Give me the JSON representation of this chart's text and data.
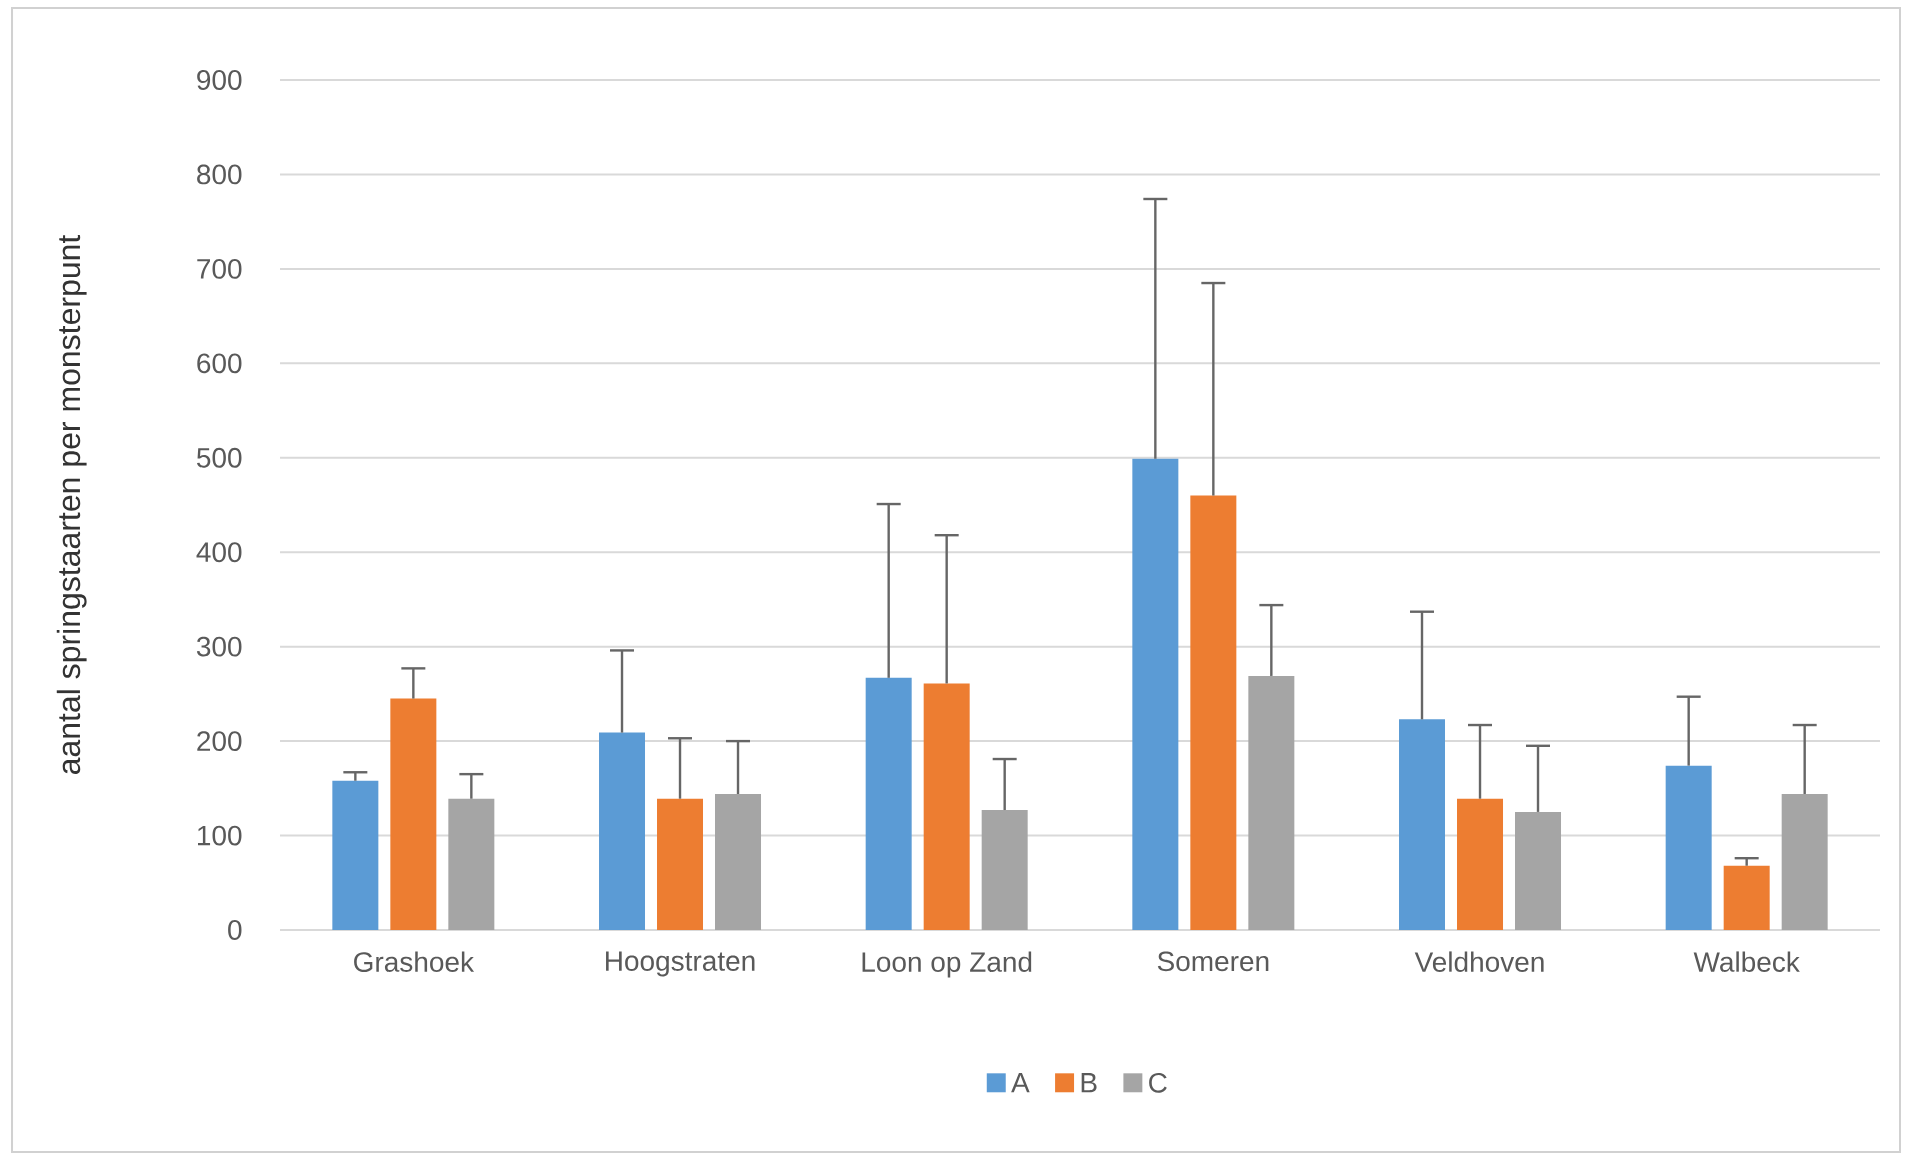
{
  "chart_data": {
    "type": "bar",
    "ylabel": "aantal springstaarten per monsterpunt",
    "categories": [
      "Grashoek",
      "Hoogstraten",
      "Loon op Zand",
      "Someren",
      "Veldhoven",
      "Walbeck"
    ],
    "series": [
      {
        "name": "A",
        "color": "#5b9bd5",
        "values": [
          158,
          209,
          267,
          499,
          223,
          174
        ],
        "errors": [
          [
            158,
            167
          ],
          [
            209,
            296
          ],
          [
            267,
            451
          ],
          [
            499,
            774
          ],
          [
            223,
            337
          ],
          [
            174,
            247
          ]
        ]
      },
      {
        "name": "B",
        "color": "#ed7d31",
        "values": [
          245,
          139,
          261,
          460,
          139,
          68
        ],
        "errors": [
          [
            245,
            277
          ],
          [
            139,
            203
          ],
          [
            261,
            418
          ],
          [
            460,
            685
          ],
          [
            139,
            217
          ],
          [
            68,
            76
          ]
        ]
      },
      {
        "name": "C",
        "color": "#a5a5a5",
        "values": [
          139,
          144,
          127,
          269,
          125,
          144
        ],
        "errors": [
          [
            139,
            165
          ],
          [
            144,
            200
          ],
          [
            127,
            181
          ],
          [
            269,
            344
          ],
          [
            125,
            195
          ],
          [
            144,
            217
          ]
        ]
      }
    ],
    "ylim": [
      0,
      900
    ],
    "yticks": [
      0,
      100,
      200,
      300,
      400,
      500,
      600,
      700,
      800,
      900
    ],
    "grid": "y",
    "legend": "bottom"
  }
}
